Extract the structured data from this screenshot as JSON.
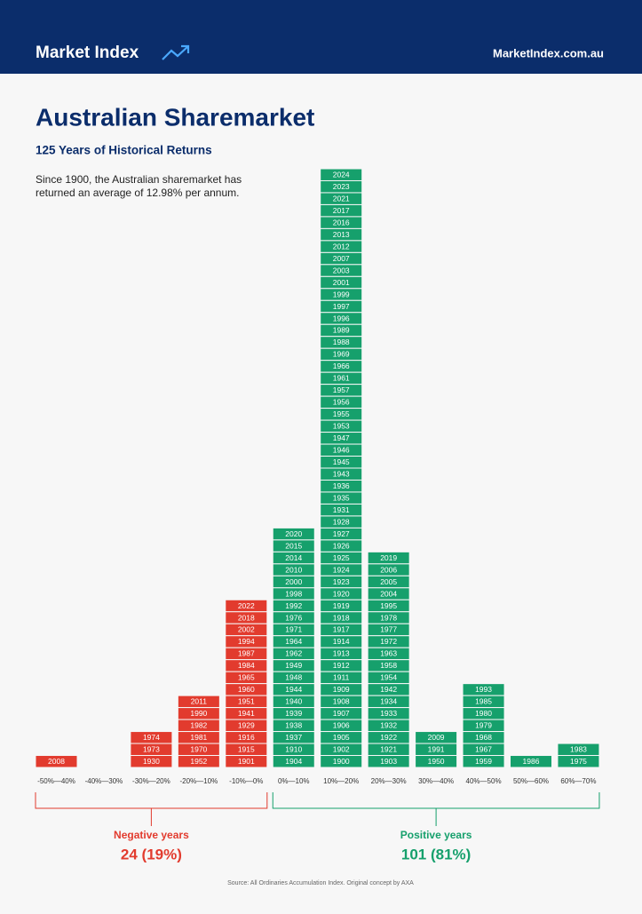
{
  "header": {
    "brand": "Market Index",
    "site": "MarketIndex.com.au"
  },
  "chart_data": {
    "type": "year-stack",
    "title": "Australian Sharemarket",
    "subtitle": "125 Years of Historical Returns",
    "description": [
      "Since 1900, the Australian sharemarket has",
      "returned an average of 12.98% per annum."
    ],
    "categories": [
      "-50%—40%",
      "-40%—30%",
      "-30%—20%",
      "-20%—10%",
      "-10%—0%",
      "0%—10%",
      "10%—20%",
      "20%—30%",
      "30%—40%",
      "40%—50%",
      "50%—60%",
      "60%—70%"
    ],
    "colors": [
      "#e23b2e",
      "#e23b2e",
      "#e23b2e",
      "#e23b2e",
      "#e23b2e",
      "#16a06c",
      "#16a06c",
      "#16a06c",
      "#16a06c",
      "#16a06c",
      "#16a06c",
      "#16a06c"
    ],
    "years": [
      [
        "2008"
      ],
      [],
      [
        "1974",
        "1973",
        "1930"
      ],
      [
        "2011",
        "1990",
        "1982",
        "1981",
        "1970",
        "1952"
      ],
      [
        "2022",
        "2018",
        "2002",
        "1994",
        "1987",
        "1984",
        "1965",
        "1960",
        "1951",
        "1941",
        "1929",
        "1916",
        "1915",
        "1901"
      ],
      [
        "2020",
        "2015",
        "2014",
        "2010",
        "2000",
        "1998",
        "1992",
        "1976",
        "1971",
        "1964",
        "1962",
        "1949",
        "1948",
        "1944",
        "1940",
        "1939",
        "1938",
        "1937",
        "1910",
        "1904"
      ],
      [
        "2024",
        "2023",
        "2021",
        "2017",
        "2016",
        "2013",
        "2012",
        "2007",
        "2003",
        "2001",
        "1999",
        "1997",
        "1996",
        "1989",
        "1988",
        "1969",
        "1966",
        "1961",
        "1957",
        "1956",
        "1955",
        "1953",
        "1947",
        "1946",
        "1945",
        "1943",
        "1936",
        "1935",
        "1931",
        "1928",
        "1927",
        "1926",
        "1925",
        "1924",
        "1923",
        "1920",
        "1919",
        "1918",
        "1917",
        "1914",
        "1913",
        "1912",
        "1911",
        "1909",
        "1908",
        "1907",
        "1906",
        "1905",
        "1902",
        "1900"
      ],
      [
        "2019",
        "2006",
        "2005",
        "2004",
        "1995",
        "1978",
        "1977",
        "1972",
        "1963",
        "1958",
        "1954",
        "1942",
        "1934",
        "1933",
        "1932",
        "1922",
        "1921",
        "1903"
      ],
      [
        "2009",
        "1991",
        "1950"
      ],
      [
        "1993",
        "1985",
        "1980",
        "1979",
        "1968",
        "1967",
        "1959"
      ],
      [
        "1986"
      ],
      [
        "1983",
        "1975"
      ]
    ],
    "groups": [
      {
        "label": "Negative years",
        "summary": "24 (19%)",
        "color": "#e23b2e",
        "from": 0,
        "to": 4
      },
      {
        "label": "Positive years",
        "summary": "101 (81%)",
        "color": "#16a06c",
        "from": 5,
        "to": 11
      }
    ],
    "source": "Source: All Ordinaries Accumulation Index. Original concept by AXA"
  }
}
